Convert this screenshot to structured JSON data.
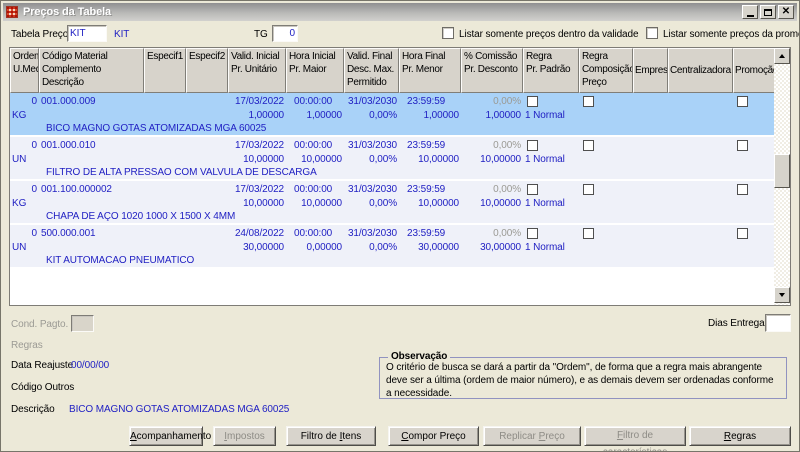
{
  "window": {
    "title": "Preços da Tabela",
    "icon": "app-icon",
    "controls": [
      "minimize-icon",
      "maximize-icon",
      "close-icon"
    ]
  },
  "colors": {
    "selected_row": "#A9D2F8",
    "row_band": "#EFF1F9",
    "data_text": "#2121C3",
    "disabled_text": "#9B9A94",
    "header_bg": "#D7D3CB",
    "window_bg": "#ECE9D8"
  },
  "top": {
    "tabela_preco_label": "Tabela Preço",
    "tabela_preco_value": "KIT",
    "tabela_preco_name": "KIT",
    "tg_label": "TG",
    "tg_value": "0",
    "chk_validade_label": "Listar somente preços dentro da validade",
    "chk_promocao_label": "Listar somente preços da promoção"
  },
  "table": {
    "headers": [
      {
        "lines": [
          "Ordem",
          "U.Med."
        ]
      },
      {
        "lines": [
          "Código Material",
          "Complemento",
          "Descrição"
        ]
      },
      {
        "lines": [
          "Especif1"
        ]
      },
      {
        "lines": [
          "Especif2"
        ]
      },
      {
        "lines": [
          "Valid. Inicial",
          "Pr. Unitário"
        ]
      },
      {
        "lines": [
          "Hora Inicial",
          "Pr. Maior"
        ]
      },
      {
        "lines": [
          "Valid. Final",
          "Desc. Max.",
          "Permitido"
        ]
      },
      {
        "lines": [
          "Hora Final",
          "Pr. Menor"
        ]
      },
      {
        "lines": [
          "% Comissão",
          "Pr. Desconto"
        ]
      },
      {
        "lines": [
          "Regra",
          "Pr. Padrão"
        ]
      },
      {
        "lines": [
          "Regra",
          "Composição",
          "Preço"
        ]
      },
      {
        "lines": [
          "Empresa"
        ]
      },
      {
        "lines": [
          "Centralizadora"
        ]
      },
      {
        "lines": [
          "Promoção"
        ]
      }
    ],
    "rows": [
      {
        "ordem": "0",
        "codigo": "001.000.009",
        "valid_inicial": "17/03/2022",
        "hora_inicial": "00:00:00",
        "valid_final": "31/03/2030",
        "hora_final": "23:59:59",
        "comissao": "0,00%",
        "umed": "KG",
        "pr_unitario": "1,00000",
        "pr_maior": "1,00000",
        "desc_max": "0,00%",
        "pr_menor": "1,00000",
        "pr_desconto": "1,00000",
        "regra": "1 Normal",
        "descricao": "BICO MAGNO GOTAS ATOMIZADAS MGA 60025"
      },
      {
        "ordem": "0",
        "codigo": "001.000.010",
        "valid_inicial": "17/03/2022",
        "hora_inicial": "00:00:00",
        "valid_final": "31/03/2030",
        "hora_final": "23:59:59",
        "comissao": "0,00%",
        "umed": "UN",
        "pr_unitario": "10,00000",
        "pr_maior": "10,00000",
        "desc_max": "0,00%",
        "pr_menor": "10,00000",
        "pr_desconto": "10,00000",
        "regra": "1 Normal",
        "descricao": "FILTRO DE ALTA PRESSAO COM VALVULA DE DESCARGA"
      },
      {
        "ordem": "0",
        "codigo": "001.100.000002",
        "valid_inicial": "17/03/2022",
        "hora_inicial": "00:00:00",
        "valid_final": "31/03/2030",
        "hora_final": "23:59:59",
        "comissao": "0,00%",
        "umed": "KG",
        "pr_unitario": "10,00000",
        "pr_maior": "10,00000",
        "desc_max": "0,00%",
        "pr_menor": "10,00000",
        "pr_desconto": "10,00000",
        "regra": "1 Normal",
        "descricao": "CHAPA DE AÇO 1020 1000 X 1500  X 4MM"
      },
      {
        "ordem": "0",
        "codigo": "500.000.001",
        "valid_inicial": "24/08/2022",
        "hora_inicial": "00:00:00",
        "valid_final": "31/03/2030",
        "hora_final": "23:59:59",
        "comissao": "0,00%",
        "umed": "UN",
        "pr_unitario": "30,00000",
        "pr_maior": "0,00000",
        "desc_max": "0,00%",
        "pr_menor": "30,00000",
        "pr_desconto": "30,00000",
        "regra": "1 Normal",
        "descricao": "KIT AUTOMACAO PNEUMATICO"
      }
    ]
  },
  "footer": {
    "cond_pagto_label": "Cond. Pagto.",
    "regras_label": "Regras",
    "dias_entrega_label": "Dias Entrega",
    "data_reajuste_label": "Data Reajuste",
    "data_reajuste_value": "00/00/00",
    "codigo_outros_label": "Código Outros",
    "descricao_label": "Descrição",
    "descricao_value": "BICO MAGNO GOTAS ATOMIZADAS MGA 60025",
    "observacao_title": "Observação",
    "observacao_text": "O critério de busca se dará a partir da \"Ordem\", de forma que a regra mais abrangente deve ser a última (ordem de maior número), e as demais devem ser ordenadas conforme a necessidade."
  },
  "buttons": [
    {
      "label": "Acompanhamento",
      "accel": "A",
      "enabled": true
    },
    {
      "label": "Impostos",
      "accel": "I",
      "enabled": false
    },
    {
      "label": "Filtro de Itens",
      "accel": "I",
      "enabled": true
    },
    {
      "label": "Compor Preço",
      "accel": "C",
      "enabled": true
    },
    {
      "label": "Replicar Preço",
      "accel": "P",
      "enabled": false
    },
    {
      "label": "Filtro de características",
      "accel": "F",
      "enabled": false
    },
    {
      "label": "Regras",
      "accel": "R",
      "enabled": true
    }
  ]
}
